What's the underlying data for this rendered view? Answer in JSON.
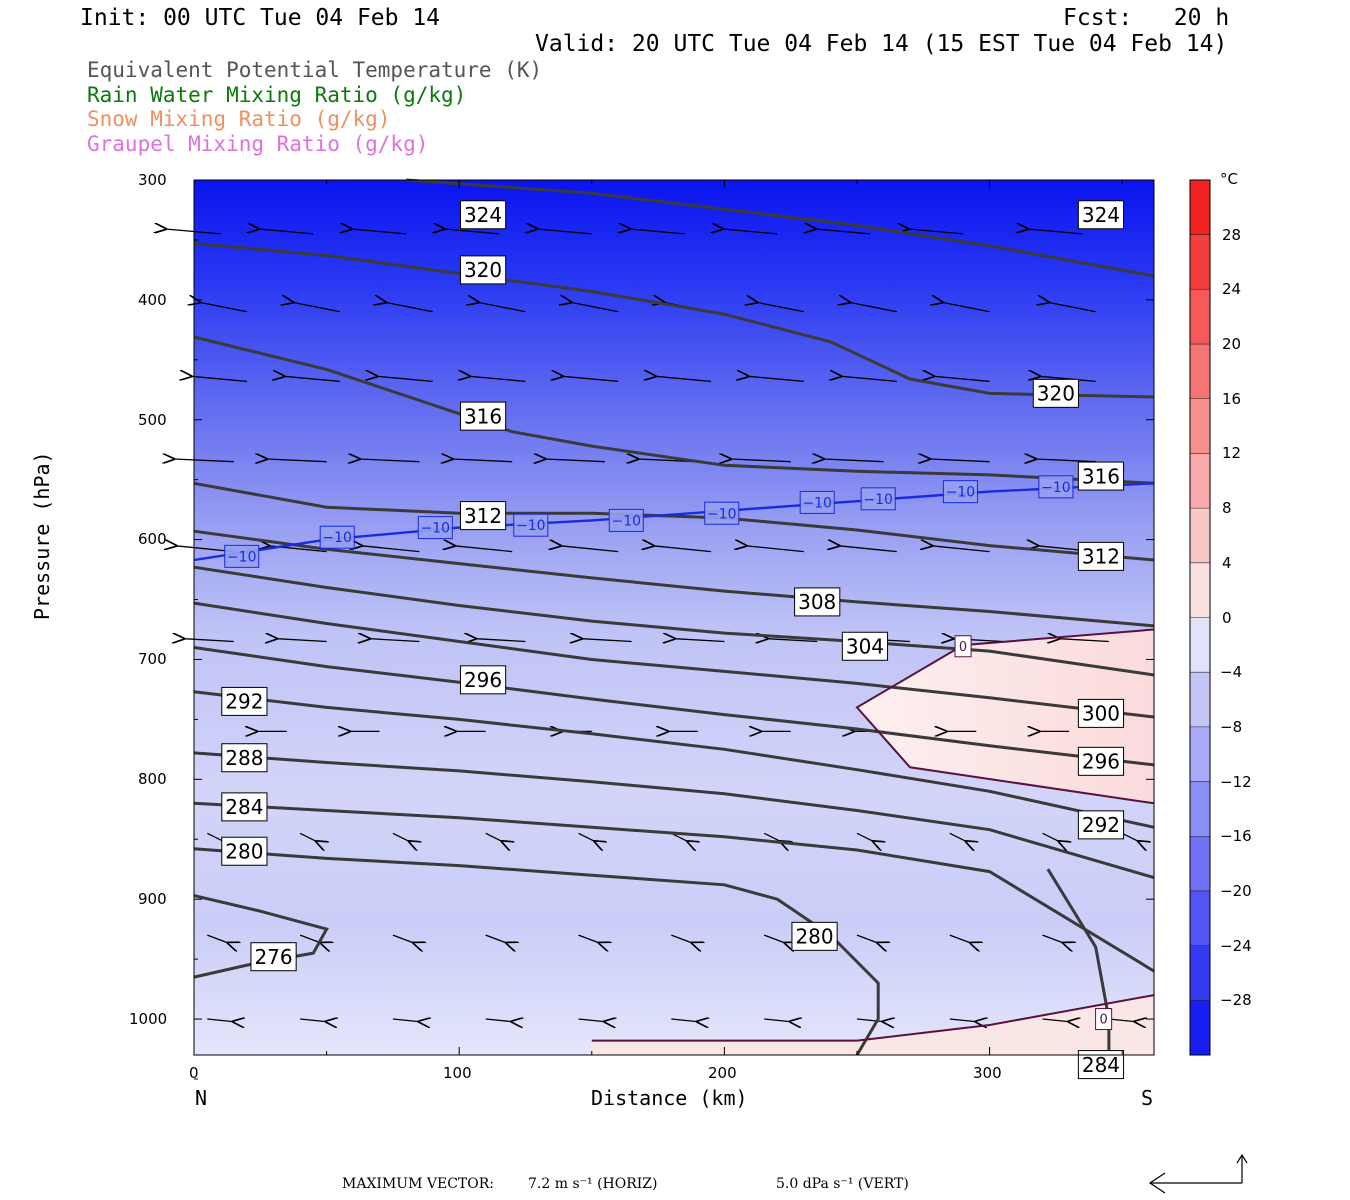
{
  "header": {
    "init": "Init: 00 UTC Tue 04 Feb 14",
    "fcst": "Fcst:   20 h",
    "valid": "Valid: 20 UTC Tue 04 Feb 14 (15 EST Tue 04 Feb 14)"
  },
  "legend": [
    {
      "text": "Equivalent Potential Temperature (K)",
      "color": "#555555"
    },
    {
      "text": "Rain Water Mixing Ratio (g/kg)",
      "color": "#0a7a0a"
    },
    {
      "text": "Snow Mixing Ratio (g/kg)",
      "color": "#f09060"
    },
    {
      "text": "Graupel Mixing Ratio (g/kg)",
      "color": "#e070e0"
    }
  ],
  "axes": {
    "ylabel": "Pressure (hPa)",
    "xlabel": "Distance (km)",
    "x_start_label": "N",
    "x_end_label": "S",
    "y_ticks": [
      "300",
      "400",
      "500",
      "600",
      "700",
      "800",
      "900",
      "1000"
    ],
    "x_ticks": [
      "0",
      "100",
      "200",
      "300"
    ]
  },
  "colorbar": {
    "unit": "°C",
    "labels": [
      "28",
      "24",
      "20",
      "16",
      "12",
      "8",
      "4",
      "0",
      "−4",
      "−8",
      "−12",
      "−16",
      "−20",
      "−24",
      "−28"
    ]
  },
  "footer": {
    "max_vector_label": "MAXIMUM VECTOR:",
    "horiz": "7.2 m s⁻¹ (HORIZ)",
    "vert": "5.0 dPa s⁻¹ (VERT)"
  },
  "chart_data": {
    "type": "cross-section",
    "xlim": [
      0,
      362
    ],
    "ylim": [
      300,
      1030
    ],
    "temperature_range_c": [
      -32,
      32
    ],
    "theta_e_contours": [
      {
        "label": "324",
        "x": [
          80,
          150,
          250,
          300,
          362
        ],
        "y": [
          300,
          311,
          338,
          355,
          380
        ]
      },
      {
        "label": "320",
        "x": [
          0,
          50,
          100,
          150,
          200,
          240,
          270,
          300,
          362
        ],
        "y": [
          353,
          363,
          378,
          393,
          412,
          435,
          466,
          478,
          481
        ]
      },
      {
        "label": "316",
        "x": [
          0,
          50,
          100,
          120,
          150,
          200,
          250,
          300,
          362
        ],
        "y": [
          431,
          458,
          495,
          510,
          522,
          538,
          543,
          546,
          553
        ]
      },
      {
        "label": "312",
        "x": [
          0,
          50,
          100,
          150,
          200,
          250,
          300,
          362
        ],
        "y": [
          553,
          573,
          578,
          578,
          582,
          592,
          605,
          617
        ]
      },
      {
        "label": "308",
        "x": [
          0,
          50,
          100,
          150,
          200,
          250,
          300,
          362
        ],
        "y": [
          593,
          608,
          620,
          632,
          643,
          652,
          660,
          672
        ]
      },
      {
        "label": "304",
        "x": [
          0,
          50,
          100,
          150,
          200,
          250,
          300,
          362
        ],
        "y": [
          623,
          640,
          655,
          668,
          678,
          685,
          693,
          713
        ]
      },
      {
        "label": "300",
        "x": [
          0,
          50,
          100,
          150,
          200,
          250,
          300,
          362
        ],
        "y": [
          653,
          670,
          685,
          700,
          710,
          720,
          732,
          748
        ]
      },
      {
        "label": "296",
        "x": [
          0,
          50,
          100,
          150,
          200,
          250,
          300,
          362
        ],
        "y": [
          690,
          706,
          719,
          733,
          746,
          758,
          772,
          788
        ]
      },
      {
        "label": "292",
        "x": [
          0,
          50,
          100,
          150,
          200,
          250,
          300,
          362
        ],
        "y": [
          727,
          740,
          750,
          762,
          775,
          792,
          810,
          840
        ]
      },
      {
        "label": "288",
        "x": [
          0,
          50,
          100,
          150,
          200,
          250,
          300,
          362
        ],
        "y": [
          778,
          786,
          793,
          802,
          812,
          826,
          842,
          882
        ]
      },
      {
        "label": "284",
        "x": [
          0,
          50,
          100,
          150,
          200,
          250,
          300,
          362
        ],
        "y": [
          820,
          826,
          832,
          840,
          848,
          859,
          877,
          960
        ]
      },
      {
        "label": "280",
        "x": [
          0,
          50,
          100,
          150,
          200,
          220,
          240,
          258,
          258,
          250
        ],
        "y": [
          858,
          866,
          872,
          880,
          888,
          900,
          930,
          970,
          1000,
          1030
        ]
      },
      {
        "label": "276",
        "x": [
          0,
          25,
          50,
          45,
          20,
          0
        ],
        "y": [
          897,
          910,
          925,
          945,
          955,
          965
        ]
      },
      {
        "label": "284",
        "x": [
          322,
          340,
          345,
          345
        ],
        "y": [
          875,
          940,
          1000,
          1030
        ]
      }
    ],
    "isotherms": [
      {
        "label": "−10",
        "x": [
          0,
          50,
          100,
          150,
          200,
          250,
          300,
          362
        ],
        "y": [
          617,
          600,
          590,
          584,
          576,
          568,
          560,
          553
        ]
      },
      {
        "label": "0",
        "x": [
          362,
          290,
          250,
          270,
          362
        ],
        "y": [
          675,
          688,
          740,
          790,
          820
        ]
      },
      {
        "label": "0",
        "x": [
          150,
          250,
          300,
          362
        ],
        "y": [
          1018,
          1018,
          1005,
          980
        ]
      }
    ]
  }
}
